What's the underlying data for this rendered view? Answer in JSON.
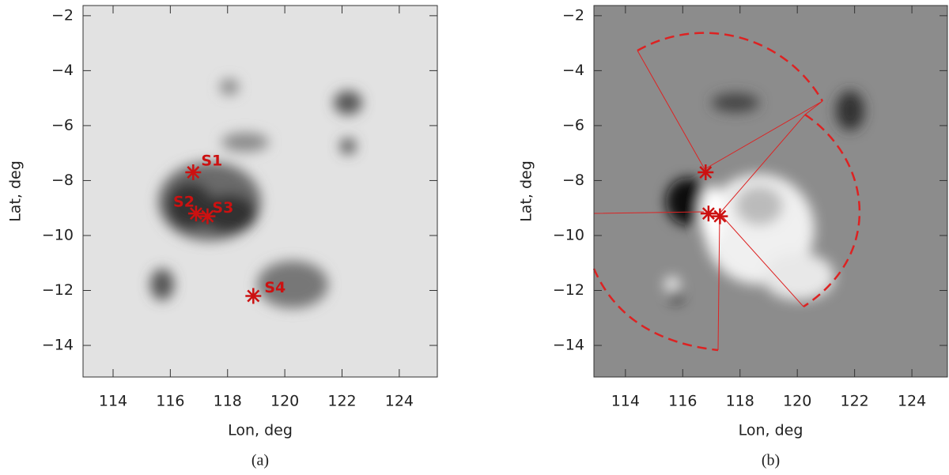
{
  "chart_data": [
    {
      "type": "scatter",
      "caption": "(a)",
      "xlabel": "Lon, deg",
      "ylabel": "Lat, deg",
      "xlim": [
        112.95,
        125.33
      ],
      "ylim": [
        -15.15,
        -1.63
      ],
      "xticks": [
        114,
        116,
        118,
        120,
        122,
        124
      ],
      "yticks": [
        {
          "value": -2,
          "label": "−2"
        },
        {
          "value": -4,
          "label": "−4"
        },
        {
          "value": -6,
          "label": "−6"
        },
        {
          "value": -8,
          "label": "−8"
        },
        {
          "value": -10,
          "label": "−10"
        },
        {
          "value": -12,
          "label": "−12"
        },
        {
          "value": -14,
          "label": "−14"
        }
      ],
      "color": "#cc1111",
      "x": [
        116.8,
        116.9,
        117.3,
        118.9
      ],
      "values": [
        -7.7,
        -9.2,
        -9.3,
        -12.2
      ],
      "labels": [
        "S1",
        "S2",
        "S3",
        "S4"
      ]
    },
    {
      "type": "scatter",
      "caption": "(b)",
      "xlabel": "Lon, deg",
      "ylabel": "Lat, deg",
      "xlim": [
        112.9,
        125.24
      ],
      "ylim": [
        -15.15,
        -1.63
      ],
      "xticks": [
        114,
        116,
        118,
        120,
        122,
        124
      ],
      "yticks": [
        {
          "value": -2,
          "label": "−2"
        },
        {
          "value": -4,
          "label": "−4"
        },
        {
          "value": -6,
          "label": "−6"
        },
        {
          "value": -8,
          "label": "−8"
        },
        {
          "value": -10,
          "label": "−10"
        },
        {
          "value": -12,
          "label": "−12"
        },
        {
          "value": -14,
          "label": "−14"
        }
      ],
      "color": "#cc1111",
      "x": [
        116.8,
        116.9,
        117.3
      ],
      "values": [
        -7.7,
        -9.2,
        -9.3
      ]
    }
  ]
}
